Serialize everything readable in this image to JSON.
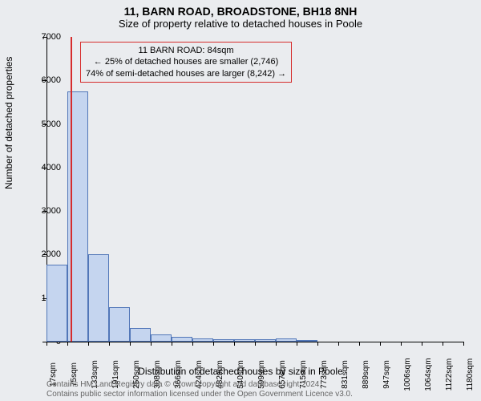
{
  "title": "11, BARN ROAD, BROADSTONE, BH18 8NH",
  "subtitle": "Size of property relative to detached houses in Poole",
  "y_axis_label": "Number of detached properties",
  "x_axis_label": "Distribution of detached houses by size in Poole",
  "footer_line1": "Contains HM Land Registry data © Crown copyright and database right 2024.",
  "footer_line2": "Contains public sector information licensed under the Open Government Licence v3.0.",
  "info_box": {
    "line1": "11 BARN ROAD: 84sqm",
    "line2": "← 25% of detached houses are smaller (2,746)",
    "line3": "74% of semi-detached houses are larger (8,242) →"
  },
  "chart": {
    "type": "histogram",
    "background_color": "#eaecef",
    "bar_fill": "#c5d5ef",
    "bar_border": "#5277b8",
    "marker_color": "#d62c2c",
    "axis_color": "#000000",
    "ylim": [
      0,
      7000
    ],
    "y_ticks": [
      0,
      1000,
      2000,
      3000,
      4000,
      5000,
      6000,
      7000
    ],
    "x_ticks": [
      "17sqm",
      "75sqm",
      "133sqm",
      "191sqm",
      "250sqm",
      "308sqm",
      "366sqm",
      "424sqm",
      "482sqm",
      "540sqm",
      "599sqm",
      "657sqm",
      "715sqm",
      "773sqm",
      "831sqm",
      "889sqm",
      "947sqm",
      "1006sqm",
      "1064sqm",
      "1122sqm",
      "1180sqm"
    ],
    "marker_x_value": 84,
    "x_range": [
      17,
      1180
    ],
    "bars": [
      {
        "x": 17,
        "value": 1770
      },
      {
        "x": 75,
        "value": 5750
      },
      {
        "x": 133,
        "value": 2000
      },
      {
        "x": 191,
        "value": 790
      },
      {
        "x": 250,
        "value": 320
      },
      {
        "x": 308,
        "value": 160
      },
      {
        "x": 366,
        "value": 110
      },
      {
        "x": 424,
        "value": 80
      },
      {
        "x": 482,
        "value": 60
      },
      {
        "x": 540,
        "value": 50
      },
      {
        "x": 599,
        "value": 55
      },
      {
        "x": 657,
        "value": 70
      },
      {
        "x": 715,
        "value": 30
      },
      {
        "x": 773,
        "value": 0
      },
      {
        "x": 831,
        "value": 0
      },
      {
        "x": 889,
        "value": 0
      },
      {
        "x": 947,
        "value": 0
      },
      {
        "x": 1006,
        "value": 0
      },
      {
        "x": 1064,
        "value": 0
      },
      {
        "x": 1122,
        "value": 0
      }
    ]
  }
}
